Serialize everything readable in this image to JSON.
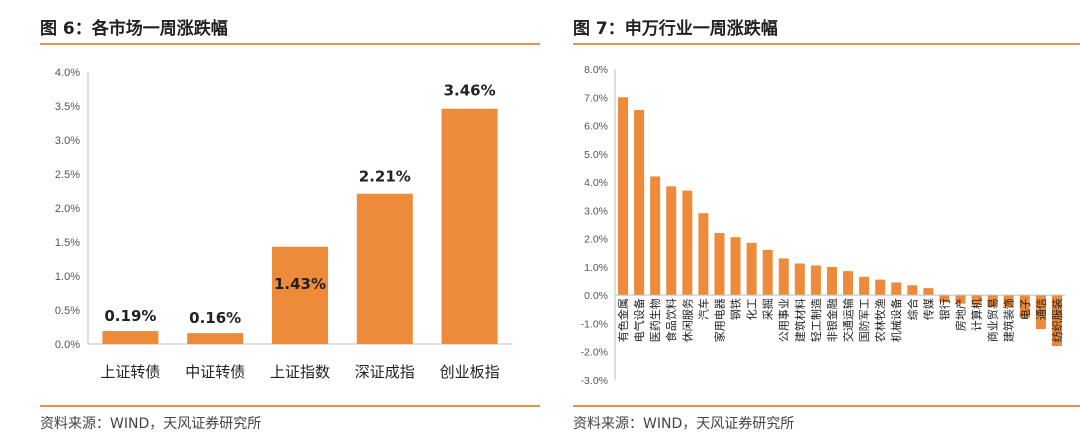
{
  "left": {
    "title": "图 6：各市场一周涨跌幅",
    "source": "资料来源：WIND，天风证券研究所"
  },
  "right": {
    "title": "图 7：申万行业一周涨跌幅",
    "source": "资料来源：WIND，天风证券研究所"
  },
  "colors": {
    "bar": "#ed8b3b",
    "accent_line": "#e8914a",
    "axis": "#bfbfbf"
  },
  "chart_data": [
    {
      "type": "bar",
      "title": "各市场一周涨跌幅",
      "categories": [
        "上证转债",
        "中证转债",
        "上证指数",
        "深证成指",
        "创业板指"
      ],
      "values": [
        0.19,
        0.16,
        1.43,
        2.21,
        3.46
      ],
      "data_labels": [
        "0.19%",
        "0.16%",
        "1.43%",
        "2.21%",
        "3.46%"
      ],
      "yticks": [
        "0.0%",
        "0.5%",
        "1.0%",
        "1.5%",
        "2.0%",
        "2.5%",
        "3.0%",
        "3.5%",
        "4.0%"
      ],
      "ylim": [
        0,
        4.0
      ],
      "xlabel": "",
      "ylabel": "",
      "grid": false
    },
    {
      "type": "bar",
      "title": "申万行业一周涨跌幅",
      "categories": [
        "有色金属",
        "电气设备",
        "医药生物",
        "食品饮料",
        "休闲服务",
        "汽车",
        "家用电器",
        "钢铁",
        "化工",
        "采掘",
        "公用事业",
        "建筑材料",
        "轻工制造",
        "非银金融",
        "交通运输",
        "国防军工",
        "农林牧渔",
        "机械设备",
        "综合",
        "传媒",
        "银行",
        "房地产",
        "计算机",
        "商业贸易",
        "建筑装饰",
        "电子",
        "通信",
        "纺织服装"
      ],
      "values": [
        7.0,
        6.55,
        4.2,
        3.85,
        3.7,
        2.9,
        2.2,
        2.05,
        1.85,
        1.6,
        1.3,
        1.12,
        1.05,
        1.0,
        0.85,
        0.65,
        0.55,
        0.45,
        0.35,
        0.25,
        -0.25,
        -0.3,
        -0.35,
        -0.4,
        -0.4,
        -0.8,
        -1.2,
        -1.8
      ],
      "yticks": [
        "-3.0%",
        "-2.0%",
        "-1.0%",
        "0.0%",
        "1.0%",
        "2.0%",
        "3.0%",
        "4.0%",
        "5.0%",
        "6.0%",
        "7.0%",
        "8.0%"
      ],
      "ylim": [
        -3.0,
        8.0
      ],
      "xlabel": "",
      "ylabel": "",
      "grid": false
    }
  ]
}
